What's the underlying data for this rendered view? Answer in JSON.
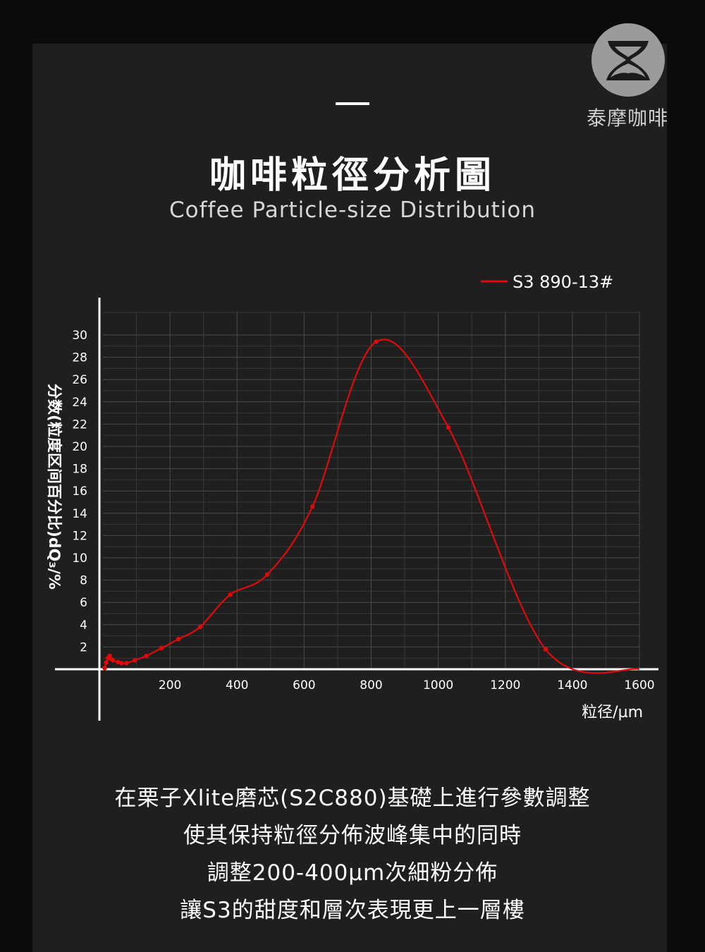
{
  "brand": {
    "name": "泰摩咖啡",
    "logo_icon": "hourglass-logo-icon"
  },
  "header": {
    "title": "咖啡粒徑分析圖",
    "subtitle": "Coffee Particle-size Distribution"
  },
  "chart_data": {
    "type": "line",
    "xlabel": "粒径/µm",
    "ylabel": "分数(粒度区间百分比)dQ₃/%",
    "xlim": [
      0,
      1600
    ],
    "ylim": [
      0,
      30
    ],
    "x_ticks": [
      200,
      400,
      600,
      800,
      1000,
      1200,
      1400,
      1600
    ],
    "y_ticks": [
      2,
      4,
      6,
      8,
      10,
      12,
      14,
      16,
      18,
      20,
      22,
      24,
      26,
      28,
      30
    ],
    "grid": true,
    "legend_position": "top-right",
    "series": [
      {
        "name": "S3 890-13#",
        "color": "#e10a0a",
        "points": [
          [
            5,
            0.1
          ],
          [
            10,
            0.6
          ],
          [
            15,
            1.0
          ],
          [
            20,
            1.2
          ],
          [
            25,
            0.9
          ],
          [
            30,
            0.8
          ],
          [
            45,
            0.65
          ],
          [
            55,
            0.55
          ],
          [
            70,
            0.55
          ],
          [
            95,
            0.8
          ],
          [
            130,
            1.2
          ],
          [
            175,
            1.9
          ],
          [
            225,
            2.7
          ],
          [
            290,
            3.8
          ],
          [
            380,
            6.7
          ],
          [
            490,
            8.5
          ],
          [
            625,
            14.6
          ],
          [
            815,
            29.4
          ],
          [
            1030,
            21.7
          ],
          [
            1320,
            1.8
          ]
        ],
        "curve_end": [
          1600,
          0.0
        ]
      }
    ]
  },
  "description": {
    "lines": [
      "在栗子Xlite磨芯(S2C880)基礎上進行參數調整",
      "使其保持粒徑分佈波峰集中的同時",
      "調整200-400µm次細粉分佈",
      "讓S3的甜度和層次表現更上一層樓"
    ]
  }
}
